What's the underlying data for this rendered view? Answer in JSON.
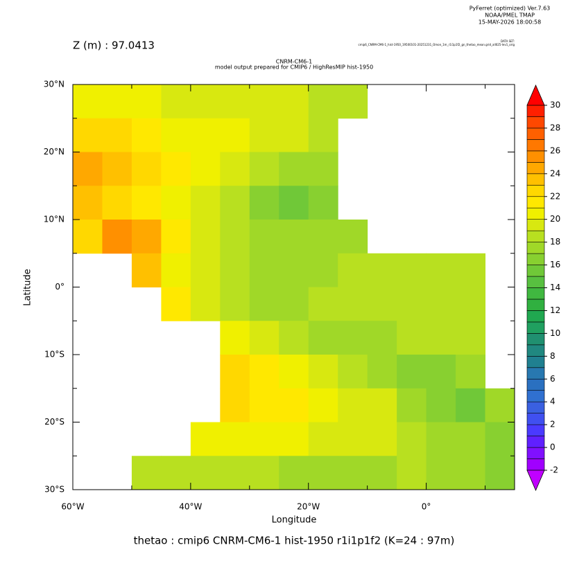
{
  "chart_data": {
    "type": "heatmap",
    "header_lines": [
      "PyFerret (optimized) Ver.7.63",
      "NOAA/PMEL TMAP",
      "15-MAY-2026 18:00:58"
    ],
    "level_text": "Z (m) : 97.0413",
    "dataset_label": "DATA SET:",
    "dataset": "cmip6_CNRM-CM6-1_hist-1950_19500101-20251231_Omon_1m_r1i1p1f2_gn_thetao_mean.grid_all025-lev1_orig",
    "title": "CNRM-CM6-1",
    "subtitle": "model output prepared for CMIP6 / HighResMIP hist-1950",
    "xlabel": "Longitude",
    "ylabel": "Latitude",
    "footer": "thetao : cmip6 CNRM-CM6-1 hist-1950 r1i1p1f2   (K=24 : 97m)",
    "xlim": [
      -60,
      15
    ],
    "ylim": [
      -30,
      30
    ],
    "xticks": [
      {
        "value": -60,
        "label": "60°W"
      },
      {
        "value": -40,
        "label": "40°W"
      },
      {
        "value": -20,
        "label": "20°W"
      },
      {
        "value": 0,
        "label": "0°"
      }
    ],
    "xminor_ticks": [
      -50,
      -30,
      -10,
      10
    ],
    "yticks": [
      {
        "value": 30,
        "label": "30°N"
      },
      {
        "value": 20,
        "label": "20°N"
      },
      {
        "value": 10,
        "label": "10°N"
      },
      {
        "value": 0,
        "label": "0°"
      },
      {
        "value": -10,
        "label": "10°S"
      },
      {
        "value": -20,
        "label": "20°S"
      },
      {
        "value": -30,
        "label": "30°S"
      }
    ],
    "yminor_ticks": [
      25,
      15,
      5,
      -5,
      -15,
      -25
    ],
    "x": [
      -57.5,
      -52.5,
      -47.5,
      -42.5,
      -37.5,
      -32.5,
      -27.5,
      -22.5,
      -17.5,
      -12.5,
      -7.5,
      -2.5,
      2.5,
      7.5,
      12.5
    ],
    "y": [
      27.5,
      22.5,
      17.5,
      12.5,
      7.5,
      2.5,
      -2.5,
      -7.5,
      -12.5,
      -17.5,
      -22.5,
      -27.5
    ],
    "values": [
      [
        20,
        20,
        20,
        19.5,
        19,
        19,
        19,
        19,
        18.5,
        18,
        null,
        null,
        null,
        null,
        null
      ],
      [
        22,
        22,
        21,
        20,
        20,
        20,
        19,
        19,
        18,
        null,
        null,
        null,
        null,
        null,
        null
      ],
      [
        24,
        23,
        22,
        21,
        20,
        19,
        18,
        17,
        17,
        null,
        null,
        null,
        null,
        null,
        null
      ],
      [
        23,
        22,
        21,
        20,
        19,
        18,
        16,
        15,
        16,
        null,
        null,
        null,
        null,
        null,
        null
      ],
      [
        22,
        25,
        24,
        21,
        19,
        18,
        17,
        17,
        17,
        17,
        null,
        null,
        null,
        null,
        null
      ],
      [
        null,
        null,
        23,
        20,
        19,
        18,
        17,
        17,
        17,
        18,
        18,
        18,
        18,
        18,
        null
      ],
      [
        null,
        null,
        null,
        21,
        19,
        18,
        17,
        17,
        18,
        18,
        18,
        18,
        18,
        18,
        null
      ],
      [
        null,
        null,
        null,
        null,
        null,
        20,
        19,
        18,
        17,
        17,
        17,
        18,
        18,
        18,
        null
      ],
      [
        null,
        null,
        null,
        null,
        null,
        22,
        21,
        20,
        19,
        18,
        17,
        16,
        16,
        17,
        null
      ],
      [
        null,
        null,
        null,
        null,
        null,
        22,
        21,
        21,
        20,
        19,
        19,
        17,
        16,
        15,
        17
      ],
      [
        null,
        null,
        null,
        null,
        20,
        20,
        20,
        20,
        19,
        19,
        19,
        18,
        17,
        17,
        16
      ],
      [
        null,
        null,
        18,
        18,
        18,
        18,
        18,
        17,
        17,
        17,
        17,
        18,
        17,
        17,
        16
      ]
    ],
    "cbar_ticks": [
      -2,
      0,
      2,
      4,
      6,
      8,
      10,
      12,
      14,
      16,
      18,
      20,
      22,
      24,
      26,
      28,
      30
    ],
    "colors": [
      "#c000ff",
      "#a000ff",
      "#8010ff",
      "#6020ff",
      "#4a3aff",
      "#4050f0",
      "#3a60e0",
      "#3070d0",
      "#2a70c0",
      "#2878b0",
      "#208090",
      "#208880",
      "#209070",
      "#20a060",
      "#20a850",
      "#30b040",
      "#40b840",
      "#58c040",
      "#70c838",
      "#88d030",
      "#a0d828",
      "#b8e020",
      "#d8e810",
      "#f0f000",
      "#ffe800",
      "#ffd800",
      "#ffc000",
      "#ffa800",
      "#ff9000",
      "#ff7800",
      "#ff6000",
      "#ff4800",
      "#ff2000",
      "#ff0000"
    ]
  }
}
